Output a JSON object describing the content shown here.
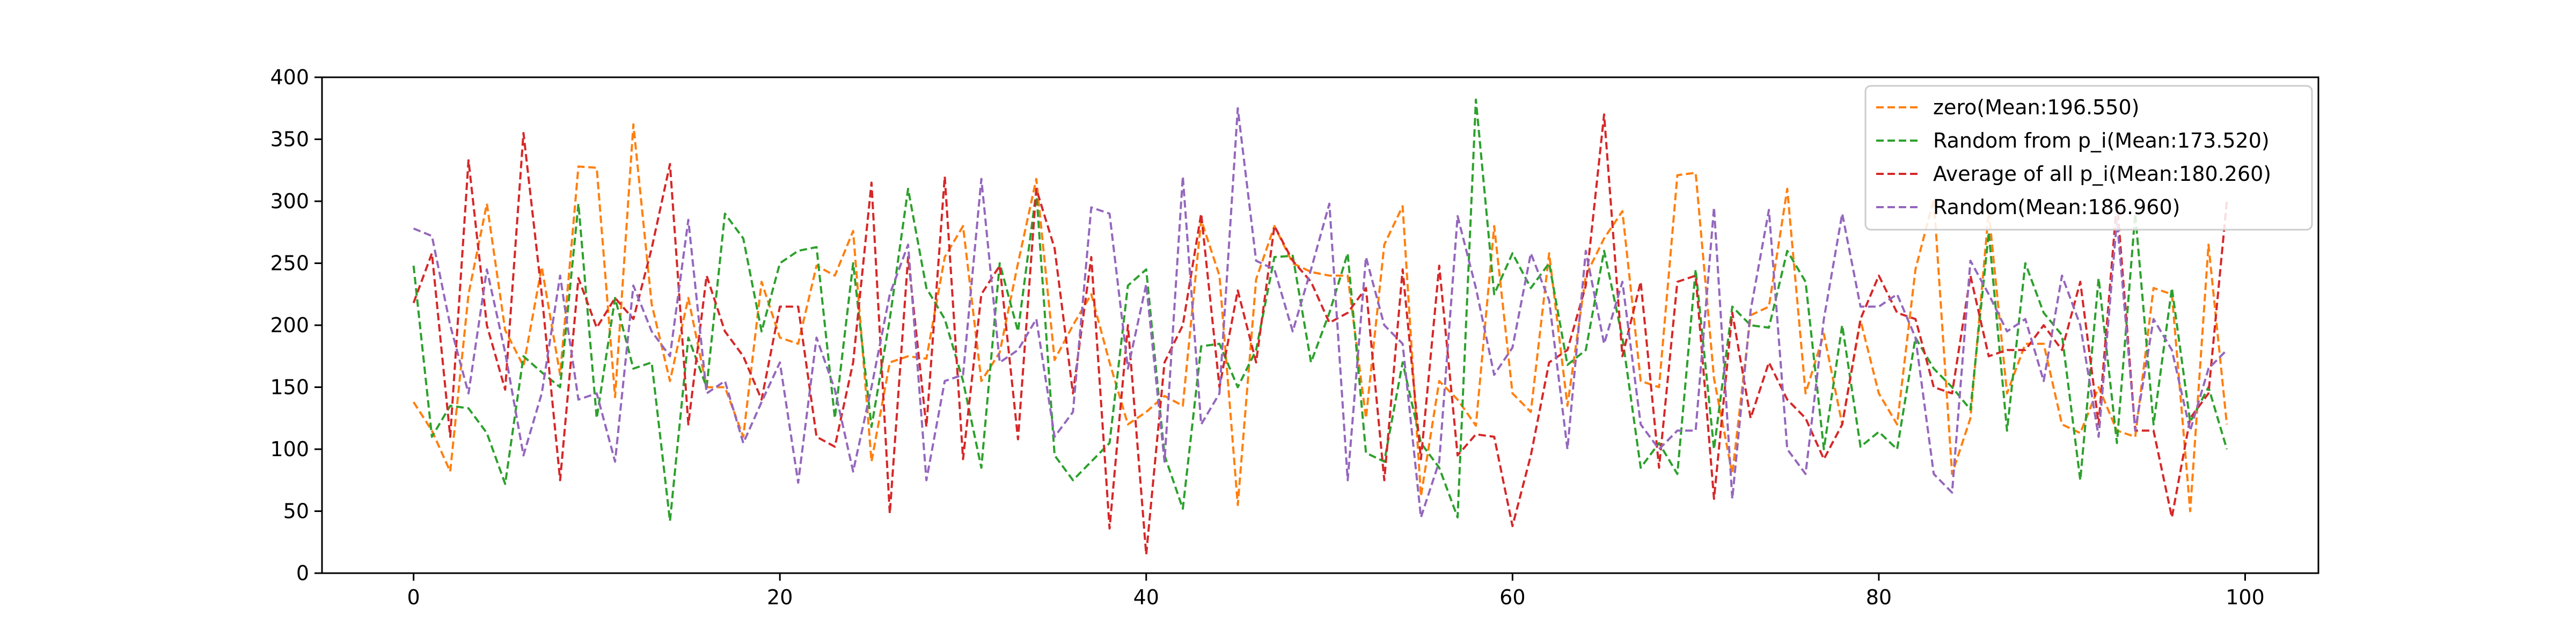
{
  "chart_data": {
    "type": "line",
    "title": "",
    "xlabel": "",
    "ylabel": "",
    "xlim": [
      -5,
      104
    ],
    "ylim": [
      0,
      400
    ],
    "xticks": [
      0,
      20,
      40,
      60,
      80,
      100
    ],
    "yticks": [
      0,
      50,
      100,
      150,
      200,
      250,
      300,
      350,
      400
    ],
    "grid": false,
    "legend_position": "top-right",
    "line_style": "dashed",
    "x": [
      0,
      1,
      2,
      3,
      4,
      5,
      6,
      7,
      8,
      9,
      10,
      11,
      12,
      13,
      14,
      15,
      16,
      17,
      18,
      19,
      20,
      21,
      22,
      23,
      24,
      25,
      26,
      27,
      28,
      29,
      30,
      31,
      32,
      33,
      34,
      35,
      36,
      37,
      38,
      39,
      40,
      41,
      42,
      43,
      44,
      45,
      46,
      47,
      48,
      49,
      50,
      51,
      52,
      53,
      54,
      55,
      56,
      57,
      58,
      59,
      60,
      61,
      62,
      63,
      64,
      65,
      66,
      67,
      68,
      69,
      70,
      71,
      72,
      73,
      74,
      75,
      76,
      77,
      78,
      79,
      80,
      81,
      82,
      83,
      84,
      85,
      86,
      87,
      88,
      89,
      90,
      91,
      92,
      93,
      94,
      95,
      96,
      97,
      98,
      99
    ],
    "series": [
      {
        "name": "zero(Mean:196.550)",
        "color": "#ff7f0e",
        "values": [
          138,
          115,
          82,
          225,
          298,
          196,
          167,
          247,
          160,
          328,
          327,
          142,
          362,
          217,
          155,
          222,
          150,
          150,
          110,
          235,
          190,
          185,
          248,
          240,
          276,
          90,
          170,
          175,
          173,
          255,
          280,
          155,
          178,
          250,
          318,
          172,
          200,
          225,
          170,
          120,
          130,
          143,
          135,
          285,
          240,
          55,
          237,
          280,
          250,
          243,
          240,
          240,
          125,
          265,
          296,
          62,
          155,
          140,
          119,
          280,
          145,
          130,
          258,
          135,
          240,
          270,
          292,
          155,
          150,
          321,
          323,
          157,
          80,
          208,
          215,
          310,
          145,
          193,
          120,
          204,
          145,
          120,
          245,
          302,
          80,
          125,
          292,
          145,
          185,
          185,
          120,
          113,
          150,
          115,
          110,
          230,
          225,
          50,
          265,
          120
        ]
      },
      {
        "name": "Random from p_i(Mean:173.520)",
        "color": "#2ca02c",
        "values": [
          248,
          110,
          135,
          133,
          113,
          72,
          175,
          162,
          150,
          298,
          125,
          222,
          165,
          170,
          42,
          190,
          150,
          290,
          270,
          195,
          250,
          260,
          263,
          125,
          250,
          118,
          205,
          310,
          230,
          205,
          155,
          85,
          250,
          195,
          308,
          95,
          75,
          90,
          105,
          232,
          245,
          95,
          52,
          183,
          185,
          150,
          180,
          255,
          256,
          170,
          210,
          258,
          97,
          90,
          170,
          105,
          85,
          45,
          382,
          225,
          258,
          230,
          250,
          168,
          180,
          260,
          190,
          85,
          105,
          80,
          245,
          100,
          215,
          200,
          198,
          260,
          235,
          100,
          200,
          102,
          114,
          100,
          190,
          165,
          150,
          132,
          275,
          115,
          250,
          210,
          192,
          75,
          238,
          105,
          290,
          120,
          230,
          122,
          150,
          100
        ]
      },
      {
        "name": "Average of all p_i(Mean:180.260)",
        "color": "#d62728",
        "values": [
          218,
          258,
          110,
          333,
          200,
          148,
          355,
          225,
          75,
          238,
          198,
          222,
          205,
          262,
          330,
          120,
          240,
          195,
          175,
          140,
          215,
          215,
          110,
          102,
          170,
          315,
          48,
          255,
          118,
          320,
          92,
          225,
          248,
          108,
          310,
          262,
          145,
          255,
          36,
          200,
          15,
          170,
          200,
          290,
          150,
          228,
          170,
          280,
          252,
          235,
          202,
          210,
          230,
          75,
          245,
          92,
          248,
          95,
          112,
          110,
          38,
          95,
          170,
          180,
          232,
          370,
          175,
          235,
          85,
          235,
          240,
          60,
          210,
          125,
          170,
          140,
          125,
          92,
          120,
          205,
          240,
          210,
          205,
          150,
          145,
          240,
          175,
          180,
          180,
          200,
          180,
          235,
          120,
          300,
          115,
          115,
          45,
          125,
          145,
          300
        ]
      },
      {
        "name": "Random(Mean:186.960)",
        "color": "#9467bd",
        "values": [
          278,
          272,
          200,
          145,
          245,
          178,
          95,
          145,
          240,
          140,
          145,
          90,
          232,
          195,
          175,
          285,
          145,
          155,
          105,
          138,
          170,
          73,
          190,
          148,
          82,
          150,
          225,
          265,
          75,
          155,
          160,
          318,
          170,
          180,
          205,
          110,
          130,
          295,
          290,
          165,
          233,
          90,
          320,
          120,
          145,
          375,
          252,
          245,
          195,
          245,
          298,
          75,
          255,
          200,
          185,
          45,
          90,
          288,
          230,
          160,
          182,
          258,
          220,
          100,
          260,
          185,
          235,
          120,
          100,
          115,
          115,
          295,
          60,
          212,
          293,
          100,
          80,
          205,
          290,
          215,
          215,
          225,
          190,
          80,
          65,
          252,
          225,
          195,
          205,
          155,
          240,
          200,
          110,
          285,
          115,
          205,
          180,
          115,
          165,
          180
        ]
      }
    ]
  }
}
